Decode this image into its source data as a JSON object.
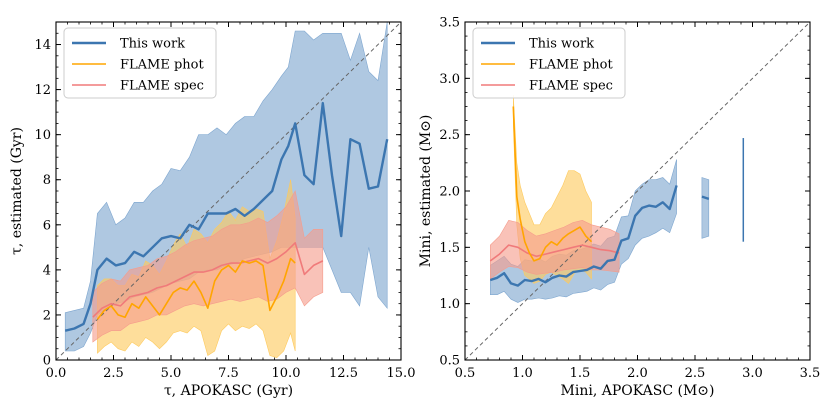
{
  "chart_data": [
    {
      "type": "line",
      "panel": "left",
      "xlabel": "τ, APOKASC (Gyr)",
      "ylabel": "τ, estimated (Gyr)",
      "xlim": [
        0,
        15
      ],
      "ylim": [
        0,
        15
      ],
      "xticks": [
        "0.0",
        "2.5",
        "5.0",
        "7.5",
        "10.0",
        "12.5",
        "15.0"
      ],
      "yticks": [
        "0",
        "2",
        "4",
        "6",
        "8",
        "10",
        "12",
        "14"
      ],
      "xtick_values": [
        0,
        2.5,
        5,
        7.5,
        10,
        12.5,
        15
      ],
      "ytick_values": [
        0,
        2,
        4,
        6,
        8,
        10,
        12,
        14
      ],
      "legend_position": "upper-left",
      "grid": false,
      "identity_line": true,
      "series": [
        {
          "name": "This work",
          "color": "#3c76b0",
          "band_color": "#7ea6cf",
          "x": [
            0.4,
            0.8,
            1.2,
            1.5,
            1.8,
            2.2,
            2.6,
            3.0,
            3.4,
            3.8,
            4.2,
            4.6,
            5.0,
            5.4,
            5.8,
            6.2,
            6.6,
            7.0,
            7.4,
            7.8,
            8.2,
            8.6,
            9.0,
            9.4,
            9.8,
            10.1,
            10.4,
            10.8,
            11.2,
            11.6,
            12.0,
            12.4,
            12.8,
            13.2,
            13.6,
            14.0,
            14.4
          ],
          "values": [
            1.3,
            1.4,
            1.6,
            2.5,
            4.0,
            4.5,
            4.2,
            4.3,
            4.8,
            4.6,
            5.0,
            5.4,
            5.5,
            5.4,
            6.0,
            5.8,
            6.5,
            6.5,
            6.5,
            6.7,
            6.4,
            6.7,
            7.1,
            7.5,
            8.9,
            9.5,
            10.5,
            8.2,
            7.8,
            11.4,
            8.2,
            5.5,
            9.8,
            9.6,
            7.6,
            7.7,
            9.8
          ],
          "lower": [
            0.4,
            0.4,
            0.6,
            1.2,
            2.0,
            2.3,
            2.5,
            2.6,
            2.8,
            2.9,
            3.0,
            3.2,
            3.4,
            3.5,
            3.6,
            3.9,
            4.0,
            4.0,
            4.2,
            4.3,
            4.5,
            4.6,
            4.7,
            4.8,
            5.0,
            5.0,
            5.0,
            5.0,
            5.0,
            5.0,
            4.0,
            3.0,
            3.0,
            2.4,
            5.0,
            2.8,
            2.3
          ],
          "upper": [
            2.1,
            2.2,
            2.3,
            3.5,
            6.5,
            7.0,
            6.0,
            6.3,
            7.0,
            7.0,
            7.5,
            7.8,
            8.5,
            8.4,
            9.0,
            10.0,
            10.0,
            10.3,
            10.0,
            10.5,
            10.8,
            10.8,
            11.5,
            12.0,
            12.6,
            13.0,
            14.6,
            14.6,
            14.2,
            14.5,
            14.5,
            14.5,
            13.3,
            14.5,
            12.8,
            12.4,
            15.0
          ]
        },
        {
          "name": "FLAME phot",
          "color": "#ffa500",
          "band_color": "#fdca5e",
          "x": [
            1.8,
            2.1,
            2.4,
            2.7,
            3.0,
            3.3,
            3.6,
            3.9,
            4.2,
            4.5,
            4.8,
            5.1,
            5.4,
            5.7,
            6.0,
            6.3,
            6.6,
            6.9,
            7.2,
            7.5,
            7.8,
            8.1,
            8.4,
            8.7,
            9.0,
            9.3,
            9.6,
            9.9,
            10.2,
            10.4
          ],
          "values": [
            1.8,
            2.2,
            2.4,
            2.0,
            1.9,
            2.5,
            2.3,
            2.8,
            2.4,
            2.0,
            2.5,
            3.0,
            3.2,
            3.1,
            3.5,
            3.0,
            2.3,
            3.5,
            4.0,
            4.2,
            3.9,
            4.4,
            4.3,
            4.4,
            4.2,
            2.2,
            2.8,
            3.5,
            4.5,
            4.3
          ],
          "lower": [
            0.3,
            0.6,
            0.8,
            0.5,
            0.4,
            0.8,
            0.6,
            1.0,
            0.8,
            0.5,
            0.8,
            1.2,
            1.3,
            1.2,
            1.5,
            1.3,
            0.2,
            0.4,
            1.3,
            1.6,
            1.3,
            1.5,
            1.4,
            1.6,
            1.3,
            0.2,
            0.1,
            0.4,
            1.2,
            0.4
          ],
          "upper": [
            3.3,
            3.6,
            3.6,
            3.3,
            3.3,
            3.8,
            3.7,
            4.4,
            4.2,
            3.8,
            4.4,
            5.1,
            5.6,
            5.0,
            5.8,
            5.6,
            5.2,
            5.8,
            6.1,
            6.6,
            6.2,
            6.8,
            6.6,
            6.7,
            6.6,
            4.5,
            5.3,
            6.5,
            8.0,
            6.3
          ]
        },
        {
          "name": "FLAME spec",
          "color": "#f07a7a",
          "band_color": "#f59c8c",
          "x": [
            1.6,
            2.0,
            2.4,
            2.8,
            3.2,
            3.6,
            4.0,
            4.4,
            4.8,
            5.2,
            5.6,
            6.0,
            6.4,
            6.8,
            7.2,
            7.6,
            8.0,
            8.4,
            8.8,
            9.2,
            9.6,
            10.0,
            10.4,
            10.8,
            11.2,
            11.6
          ],
          "values": [
            1.9,
            2.3,
            2.5,
            2.4,
            2.8,
            2.9,
            3.0,
            3.2,
            3.3,
            3.5,
            3.7,
            3.9,
            3.9,
            4.0,
            4.2,
            4.3,
            4.3,
            4.4,
            4.5,
            4.3,
            4.5,
            4.8,
            5.2,
            3.8,
            4.2,
            4.4
          ],
          "lower": [
            0.8,
            1.1,
            1.3,
            1.3,
            1.6,
            1.7,
            1.8,
            2.0,
            2.0,
            2.2,
            2.4,
            2.5,
            2.4,
            2.5,
            2.6,
            2.7,
            2.6,
            2.7,
            2.8,
            2.6,
            2.7,
            3.0,
            3.2,
            2.4,
            2.8,
            3.0
          ],
          "upper": [
            3.0,
            3.4,
            3.6,
            3.5,
            4.0,
            4.1,
            4.2,
            4.5,
            4.6,
            4.8,
            5.1,
            5.3,
            5.4,
            5.5,
            5.8,
            6.0,
            6.0,
            6.1,
            6.3,
            6.1,
            6.4,
            6.8,
            7.5,
            5.4,
            5.8,
            5.8
          ]
        }
      ]
    },
    {
      "type": "line",
      "panel": "right",
      "xlabel": "Mini, APOKASC (M⊙)",
      "ylabel": "Mini, estimated (M⊙)",
      "xlim": [
        0.5,
        3.5
      ],
      "ylim": [
        0.5,
        3.5
      ],
      "xticks": [
        "0.5",
        "1.0",
        "1.5",
        "2.0",
        "2.5",
        "3.0",
        "3.5"
      ],
      "yticks": [
        "0.5",
        "1.0",
        "1.5",
        "2.0",
        "2.5",
        "3.0",
        "3.5"
      ],
      "xtick_values": [
        0.5,
        1.0,
        1.5,
        2.0,
        2.5,
        3.0,
        3.5
      ],
      "ytick_values": [
        0.5,
        1.0,
        1.5,
        2.0,
        2.5,
        3.0,
        3.5
      ],
      "legend_position": "upper-left",
      "grid": false,
      "identity_line": true,
      "series": [
        {
          "name": "This work",
          "color": "#3c76b0",
          "band_color": "#7ea6cf",
          "x": [
            0.72,
            0.78,
            0.84,
            0.9,
            0.96,
            1.02,
            1.08,
            1.14,
            1.2,
            1.26,
            1.32,
            1.38,
            1.44,
            1.5,
            1.56,
            1.62,
            1.68,
            1.74,
            1.8,
            1.86,
            1.92,
            1.98,
            2.04,
            2.1,
            2.16,
            2.22,
            2.28,
            2.34
          ],
          "values": [
            1.21,
            1.23,
            1.27,
            1.18,
            1.16,
            1.21,
            1.2,
            1.22,
            1.19,
            1.23,
            1.25,
            1.24,
            1.28,
            1.29,
            1.3,
            1.33,
            1.31,
            1.38,
            1.39,
            1.56,
            1.58,
            1.78,
            1.85,
            1.87,
            1.86,
            1.9,
            1.84,
            2.05
          ],
          "lower": [
            1.08,
            1.08,
            1.11,
            1.04,
            1.01,
            1.04,
            1.04,
            1.05,
            1.04,
            1.05,
            1.07,
            1.06,
            1.09,
            1.1,
            1.11,
            1.14,
            1.12,
            1.17,
            1.19,
            1.35,
            1.4,
            1.52,
            1.58,
            1.6,
            1.63,
            1.67,
            1.63,
            1.8
          ],
          "upper": [
            1.34,
            1.38,
            1.42,
            1.35,
            1.33,
            1.39,
            1.38,
            1.4,
            1.37,
            1.42,
            1.44,
            1.43,
            1.47,
            1.48,
            1.5,
            1.53,
            1.51,
            1.58,
            1.6,
            1.77,
            1.78,
            2.0,
            2.06,
            2.1,
            2.1,
            2.12,
            2.06,
            2.28
          ]
        },
        {
          "name": "FLAME phot",
          "color": "#ffa500",
          "band_color": "#fdca5e",
          "x": [
            0.92,
            0.95,
            0.98,
            1.02,
            1.06,
            1.1,
            1.15,
            1.2,
            1.25,
            1.3,
            1.35,
            1.4,
            1.45,
            1.5,
            1.55,
            1.6
          ],
          "values": [
            2.75,
            1.95,
            1.75,
            1.55,
            1.45,
            1.38,
            1.4,
            1.5,
            1.55,
            1.52,
            1.58,
            1.62,
            1.65,
            1.68,
            1.6,
            1.55
          ],
          "lower": [
            2.6,
            1.7,
            1.4,
            1.25,
            1.22,
            1.18,
            1.2,
            1.26,
            1.28,
            1.25,
            1.22,
            1.18,
            1.27,
            1.3,
            1.28,
            1.22
          ],
          "upper": [
            2.85,
            2.25,
            2.05,
            1.9,
            1.8,
            1.7,
            1.7,
            1.8,
            1.85,
            1.95,
            2.05,
            2.18,
            2.18,
            2.15,
            2.0,
            1.9
          ]
        },
        {
          "name": "FLAME spec",
          "color": "#f07a7a",
          "band_color": "#f59c8c",
          "x": [
            0.72,
            0.8,
            0.88,
            0.96,
            1.04,
            1.12,
            1.2,
            1.28,
            1.36,
            1.44,
            1.52,
            1.6,
            1.68,
            1.76,
            1.84
          ],
          "values": [
            1.38,
            1.44,
            1.52,
            1.5,
            1.45,
            1.42,
            1.44,
            1.46,
            1.48,
            1.5,
            1.52,
            1.5,
            1.48,
            1.47,
            1.45
          ],
          "lower": [
            1.22,
            1.28,
            1.33,
            1.32,
            1.28,
            1.26,
            1.27,
            1.28,
            1.3,
            1.31,
            1.32,
            1.3,
            1.3,
            1.29,
            1.28
          ],
          "upper": [
            1.52,
            1.6,
            1.74,
            1.72,
            1.65,
            1.6,
            1.62,
            1.65,
            1.68,
            1.72,
            1.74,
            1.7,
            1.68,
            1.66,
            1.62
          ]
        }
      ],
      "extra_segments": [
        {
          "name": "This work",
          "x": [
            2.56,
            2.62
          ],
          "values": [
            1.95,
            1.93
          ],
          "lower": [
            1.58,
            1.6
          ],
          "upper": [
            2.12,
            2.1
          ]
        },
        {
          "name": "This work",
          "x": [
            2.92
          ],
          "values": [
            2.0
          ],
          "lower": [
            1.55
          ],
          "upper": [
            2.47
          ]
        }
      ]
    }
  ]
}
